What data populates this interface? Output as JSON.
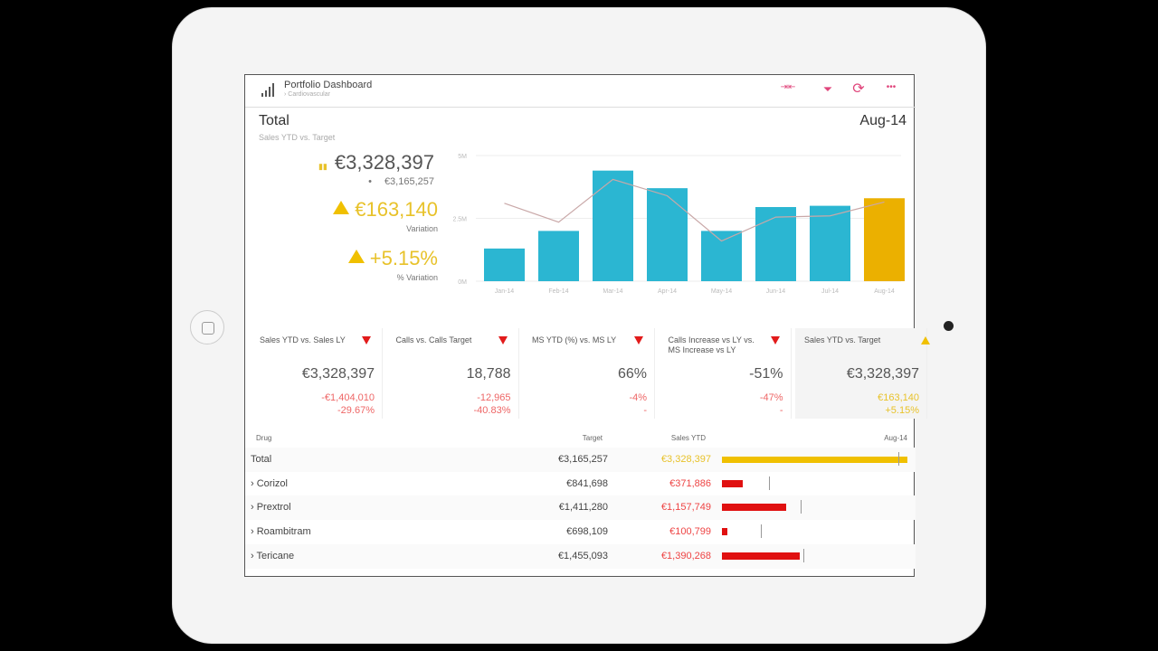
{
  "header": {
    "title": "Portfolio Dashboard",
    "breadcrumb": "› Cardiovascular",
    "icons": [
      "collapse-icon",
      "filter-icon",
      "refresh-icon",
      "more-icon"
    ]
  },
  "summary": {
    "title": "Total",
    "subtitle": "Sales YTD vs. Target",
    "period": "Aug-14",
    "sales": "€3,328,397",
    "target": "€3,165,257",
    "variation": "€163,140",
    "variation_label": "Variation",
    "pct_variation": "+5.15%",
    "pct_variation_label": "% Variation"
  },
  "chart_data": {
    "type": "bar",
    "categories": [
      "Jan-14",
      "Feb-14",
      "Mar-14",
      "Apr-14",
      "May-14",
      "Jun-14",
      "Jul-14",
      "Aug-14"
    ],
    "series": [
      {
        "name": "Sales",
        "values": [
          1.3,
          2.0,
          4.4,
          3.7,
          2.0,
          2.95,
          3.0,
          3.3
        ]
      },
      {
        "name": "Target",
        "type": "line",
        "values": [
          3.1,
          2.35,
          4.05,
          3.4,
          1.6,
          2.55,
          2.6,
          3.15
        ]
      }
    ],
    "yticks": [
      "0M",
      "2.5M",
      "5M"
    ],
    "ylim": [
      0,
      5
    ],
    "ylabel": "",
    "xlabel": "",
    "highlight": "Aug-14",
    "colors": {
      "bar": "#2bb6d2",
      "highlight": "#ebb000",
      "line": "#c9a8a8"
    }
  },
  "cards": [
    {
      "title": "Sales YTD vs. Sales LY",
      "value": "€3,328,397",
      "delta": "-€1,404,010",
      "pct": "-29.67%",
      "trend": "down"
    },
    {
      "title": "Calls vs. Calls Target",
      "value": "18,788",
      "delta": "-12,965",
      "pct": "-40.83%",
      "trend": "down"
    },
    {
      "title": "MS YTD (%) vs. MS LY",
      "value": "66%",
      "delta": "-4%",
      "pct": "-",
      "trend": "down"
    },
    {
      "title": "Calls Increase vs LY vs. MS Increase vs LY",
      "value": "-51%",
      "delta": "-47%",
      "pct": "-",
      "trend": "down"
    },
    {
      "title": "Sales YTD vs. Target",
      "value": "€3,328,397",
      "delta": "€163,140",
      "pct": "+5.15%",
      "trend": "up"
    }
  ],
  "table": {
    "headers": {
      "drug": "Drug",
      "target": "Target",
      "sales": "Sales YTD",
      "period": "Aug-14"
    },
    "rows": [
      {
        "name": "Total",
        "target": "€3,165,257",
        "sales": "€3,328,397",
        "target_num": 3165257,
        "sales_num": 3328397
      },
      {
        "name": "› Corizol",
        "target": "€841,698",
        "sales": "€371,886",
        "target_num": 841698,
        "sales_num": 371886
      },
      {
        "name": "› Prextrol",
        "target": "€1,411,280",
        "sales": "€1,157,749",
        "target_num": 1411280,
        "sales_num": 1157749
      },
      {
        "name": "› Roambitram",
        "target": "€698,109",
        "sales": "€100,799",
        "target_num": 698109,
        "sales_num": 100799
      },
      {
        "name": "› Tericane",
        "target": "€1,455,093",
        "sales": "€1,390,268",
        "target_num": 1455093,
        "sales_num": 1390268
      }
    ]
  }
}
